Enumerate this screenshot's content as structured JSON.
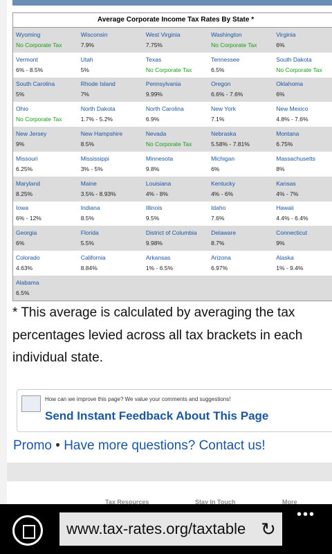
{
  "table": {
    "title": "Average Corporate Income Tax Rates By State *",
    "rows": [
      [
        {
          "state": "Wyoming",
          "rate": "No Corporate Tax",
          "color": "#1a9a1a"
        },
        {
          "state": "Wisconsin",
          "rate": "7.9%"
        },
        {
          "state": "West Virginia",
          "rate": "7.75%"
        },
        {
          "state": "Washington",
          "rate": "No Corporate Tax",
          "color": "#1a9a1a"
        },
        {
          "state": "Virginia",
          "rate": "6%"
        }
      ],
      [
        {
          "state": "Vermont",
          "rate": "6% - 8.5%"
        },
        {
          "state": "Utah",
          "rate": "5%"
        },
        {
          "state": "Texas",
          "rate": "No Corporate Tax",
          "color": "#1a9a1a"
        },
        {
          "state": "Tennessee",
          "rate": "6.5%"
        },
        {
          "state": "South Dakota",
          "rate": "No Corporate Tax",
          "color": "#1a9a1a"
        }
      ],
      [
        {
          "state": "South Carolina",
          "rate": "5%"
        },
        {
          "state": "Rhode Island",
          "rate": "7%"
        },
        {
          "state": "Pennsylvania",
          "rate": "9.99%"
        },
        {
          "state": "Oregon",
          "rate": "6.6% - 7.6%"
        },
        {
          "state": "Oklahoma",
          "rate": "6%"
        }
      ],
      [
        {
          "state": "Ohio",
          "rate": "No Corporate Tax",
          "color": "#1a9a1a"
        },
        {
          "state": "North Dakota",
          "rate": "1.7% - 5.2%"
        },
        {
          "state": "North Carolina",
          "rate": "6.9%"
        },
        {
          "state": "New York",
          "rate": "7.1%"
        },
        {
          "state": "New Mexico",
          "rate": "4.8% - 7.6%"
        }
      ],
      [
        {
          "state": "New Jersey",
          "rate": "9%"
        },
        {
          "state": "New Hampshire",
          "rate": "8.5%"
        },
        {
          "state": "Nevada",
          "rate": "No Corporate Tax",
          "color": "#1a9a1a"
        },
        {
          "state": "Nebraska",
          "rate": "5.58% - 7.81%"
        },
        {
          "state": "Montana",
          "rate": "6.75%"
        }
      ],
      [
        {
          "state": "Missouri",
          "rate": "6.25%"
        },
        {
          "state": "Mississippi",
          "rate": "3% - 5%"
        },
        {
          "state": "Minnesota",
          "rate": "9.8%"
        },
        {
          "state": "Michigan",
          "rate": "6%"
        },
        {
          "state": "Massachusetts",
          "rate": "8%"
        }
      ],
      [
        {
          "state": "Maryland",
          "rate": "8.25%"
        },
        {
          "state": "Maine",
          "rate": "3.5% - 8.93%"
        },
        {
          "state": "Louisiana",
          "rate": "4% - 8%"
        },
        {
          "state": "Kentucky",
          "rate": "4% - 6%"
        },
        {
          "state": "Kansas",
          "rate": "4% - 7%"
        }
      ],
      [
        {
          "state": "Iowa",
          "rate": "6% - 12%"
        },
        {
          "state": "Indiana",
          "rate": "8.5%"
        },
        {
          "state": "Illinois",
          "rate": "9.5%"
        },
        {
          "state": "Idaho",
          "rate": "7.6%"
        },
        {
          "state": "Hawaii",
          "rate": "4.4% - 6.4%"
        }
      ],
      [
        {
          "state": "Georgia",
          "rate": "6%"
        },
        {
          "state": "Florida",
          "rate": "5.5%"
        },
        {
          "state": "District of Columbia",
          "rate": "9.98%"
        },
        {
          "state": "Delaware",
          "rate": "8.7%"
        },
        {
          "state": "Connecticut",
          "rate": "9%"
        }
      ],
      [
        {
          "state": "Colorado",
          "rate": "4.63%"
        },
        {
          "state": "California",
          "rate": "8.84%"
        },
        {
          "state": "Arkansas",
          "rate": "1% - 6.5%"
        },
        {
          "state": "Arizona",
          "rate": "6.97%"
        },
        {
          "state": "Alaska",
          "rate": "1% - 9.4%"
        }
      ],
      [
        {
          "state": "Alabama",
          "rate": "6.5%"
        }
      ]
    ]
  },
  "footnote": "* This average is calculated by averaging the tax percentages levied across all tax brackets in each individual state.",
  "feedback": {
    "prompt": "How can we improve this page? We value your comments and suggestions!",
    "link": "Send Instant Feedback About This Page"
  },
  "links": {
    "promo": "Promo",
    "separator": "•",
    "contact": "Have more questions? Contact us!"
  },
  "footer": [
    "Tax Resources",
    "Stay In Touch",
    "More"
  ],
  "browser": {
    "url": "www.tax-rates.org/taxtable"
  }
}
